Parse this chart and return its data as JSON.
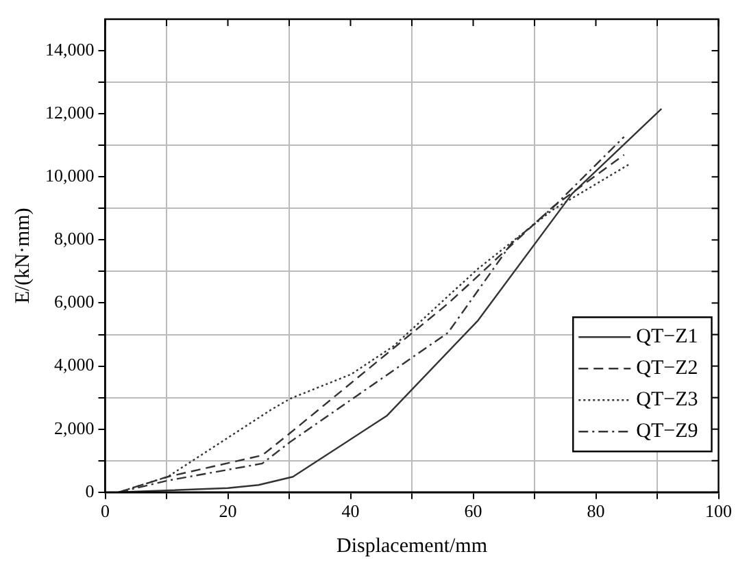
{
  "chart_data": {
    "type": "line",
    "xlabel": "Displacement/mm",
    "ylabel": "E/(kN·mm)",
    "xlim": [
      0,
      100
    ],
    "ylim": [
      0,
      15000
    ],
    "xticks": [
      0,
      {
        "value": 10,
        "label": null
      },
      20,
      {
        "value": 30,
        "label": null
      },
      40,
      {
        "value": 50,
        "label": null
      },
      60,
      {
        "value": 70,
        "label": null
      },
      80,
      {
        "value": 90,
        "label": null
      },
      100
    ],
    "yticks": [
      {
        "value": 0,
        "label": "0"
      },
      {
        "value": 1000,
        "label": null
      },
      {
        "value": 2000,
        "label": "2,000"
      },
      {
        "value": 3000,
        "label": null
      },
      {
        "value": 4000,
        "label": "4,000"
      },
      {
        "value": 5000,
        "label": null
      },
      {
        "value": 6000,
        "label": "6,000"
      },
      {
        "value": 7000,
        "label": null
      },
      {
        "value": 8000,
        "label": "8,000"
      },
      {
        "value": 9000,
        "label": null
      },
      {
        "value": 10000,
        "label": "10,000"
      },
      {
        "value": 11000,
        "label": null
      },
      {
        "value": 12000,
        "label": "12,000"
      },
      {
        "value": 13000,
        "label": null
      },
      {
        "value": 14000,
        "label": "14,000"
      }
    ],
    "grid": true,
    "legend": "right",
    "marker": "none",
    "series": [
      {
        "name": "QT−Z1",
        "color": "#333333",
        "line_style": "solid",
        "x": [
          2.2,
          20,
          25,
          30.6,
          45.9,
          60.8,
          76.1,
          90.7
        ],
        "values": [
          0,
          130,
          230,
          490,
          2420,
          5450,
          9460,
          12160
        ]
      },
      {
        "name": "QT−Z2",
        "color": "#333333",
        "line_style": "dashed",
        "x": [
          2.2,
          10.2,
          25.6,
          30.3,
          56,
          73,
          84.6
        ],
        "values": [
          0,
          490,
          1170,
          1900,
          6000,
          9050,
          10700
        ]
      },
      {
        "name": "QT−Z3",
        "color": "#333333",
        "line_style": "dotted",
        "x": [
          2.2,
          10.2,
          27,
          30.2,
          40.1,
          47,
          60.8,
          73,
          85.7
        ],
        "values": [
          0,
          490,
          2610,
          2970,
          3740,
          4630,
          7090,
          8960,
          10430
        ]
      },
      {
        "name": "QT−Z9",
        "color": "#333333",
        "line_style": "dashdot",
        "x": [
          2.2,
          10.2,
          25.6,
          30.2,
          55.9,
          66.2,
          73,
          84.6
        ],
        "values": [
          0,
          370,
          910,
          1600,
          5060,
          7880,
          9030,
          11270
        ]
      }
    ]
  }
}
